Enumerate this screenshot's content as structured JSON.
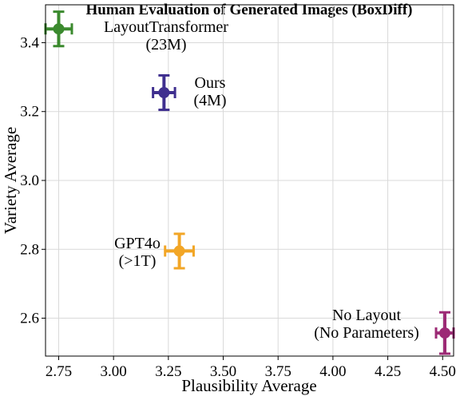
{
  "chart_data": {
    "type": "scatter",
    "title": "Human Evaluation of Generated Images (BoxDiff)",
    "xlabel": "Plausibility Average",
    "ylabel": "Variety Average",
    "xlim": [
      2.69,
      4.55
    ],
    "ylim": [
      2.49,
      3.51
    ],
    "xticks": [
      "2.75",
      "3.00",
      "3.25",
      "3.50",
      "3.75",
      "4.00",
      "4.25",
      "4.50"
    ],
    "yticks": [
      "2.6",
      "2.8",
      "3.0",
      "3.2",
      "3.4"
    ],
    "grid": true,
    "points": [
      {
        "label": [
          "LayoutTransformer",
          "(23M)"
        ],
        "x": 2.75,
        "y": 3.44,
        "xerr": 0.06,
        "yerr": 0.05,
        "color": "#3b8a2e"
      },
      {
        "label": [
          "Ours",
          "(4M)"
        ],
        "x": 3.23,
        "y": 3.255,
        "xerr": 0.05,
        "yerr": 0.05,
        "color": "#3f2f8f"
      },
      {
        "label": [
          "GPT4o",
          "(>1T)"
        ],
        "x": 3.3,
        "y": 2.795,
        "xerr": 0.065,
        "yerr": 0.05,
        "color": "#f2a626"
      },
      {
        "label": [
          "No Layout",
          "(No Parameters)"
        ],
        "x": 4.51,
        "y": 2.557,
        "xerr": 0.04,
        "yerr": 0.06,
        "color": "#9c2a75"
      }
    ]
  }
}
